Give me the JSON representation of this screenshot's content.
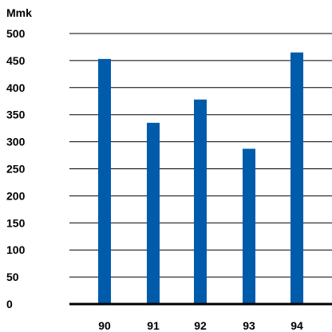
{
  "chart_data": {
    "type": "bar",
    "title": "",
    "xlabel": "",
    "ylabel": "Mmk",
    "categories": [
      "90",
      "91",
      "92",
      "93",
      "94"
    ],
    "values": [
      453,
      335,
      378,
      287,
      465
    ],
    "ylim": [
      0,
      500
    ],
    "yticks": [
      "0",
      "50",
      "100",
      "150",
      "200",
      "250",
      "300",
      "350",
      "400",
      "450",
      "500"
    ],
    "grid": "horizontal",
    "legend": "none",
    "colors": {
      "bar": "#005bab",
      "grid": "#000000",
      "text": "#000000"
    }
  }
}
